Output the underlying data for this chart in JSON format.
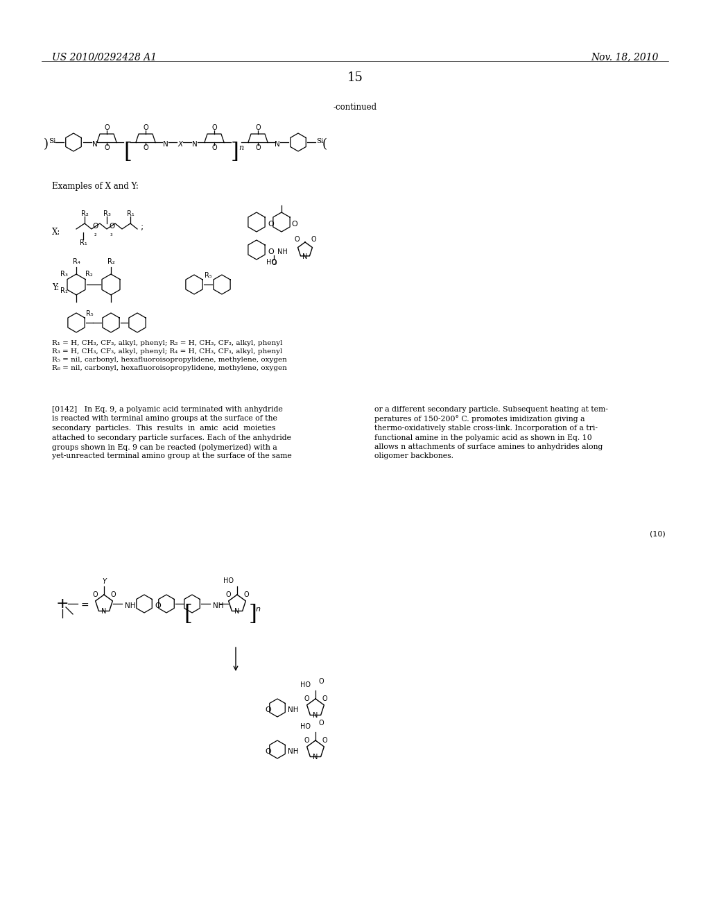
{
  "patent_number": "US 2010/0292428 A1",
  "date": "Nov. 18, 2010",
  "page_number": "15",
  "continued_label": "-continued",
  "background_color": "#ffffff",
  "text_color": "#000000",
  "font_size_header": 10,
  "font_size_page": 14,
  "font_size_body": 8.5,
  "paragraph_text": "[0142] In Eq. 9, a polyamic acid terminated with anhydride is reacted with terminal amino groups at the surface of the secondary particles. This results in amic acid moieties attached to secondary particle surfaces. Each of the anhydride groups shown in Eq. 9 can be reacted (polymerized) with a yet-unreacted terminal amino group at the surface of the same or a different secondary particle. Subsequent heating at temperatures of 150-200° C. promotes imidization giving a thermo-oxidatively stable cross-link. Incorporation of a trifunctional amine in the polyamic acid as shown in Eq. 10 allows n attachments of surface amines to anhydrides along oligomer backbones.",
  "examples_label": "Examples of X and Y:",
  "x_label": "X:",
  "y_label": "Y:",
  "r_labels": "R₁ = H, CH₃, CF₃, alkyl, phenyl; R₂ = H, CH₃, CF₃, alkyl, phenyl\nR₃ = H, CH₃, CF₃, alkyl, phenyl; R₄ = H, CH₃, CF₃, alkyl, phenyl\nR₅ = nil, carbonyl, hexafluoroisopropylidene, methylene, oxygen\nR₆ = nil, carbonyl, hexafluoroisopropylidene, methylene, oxygen",
  "eq10_label": "(10)"
}
